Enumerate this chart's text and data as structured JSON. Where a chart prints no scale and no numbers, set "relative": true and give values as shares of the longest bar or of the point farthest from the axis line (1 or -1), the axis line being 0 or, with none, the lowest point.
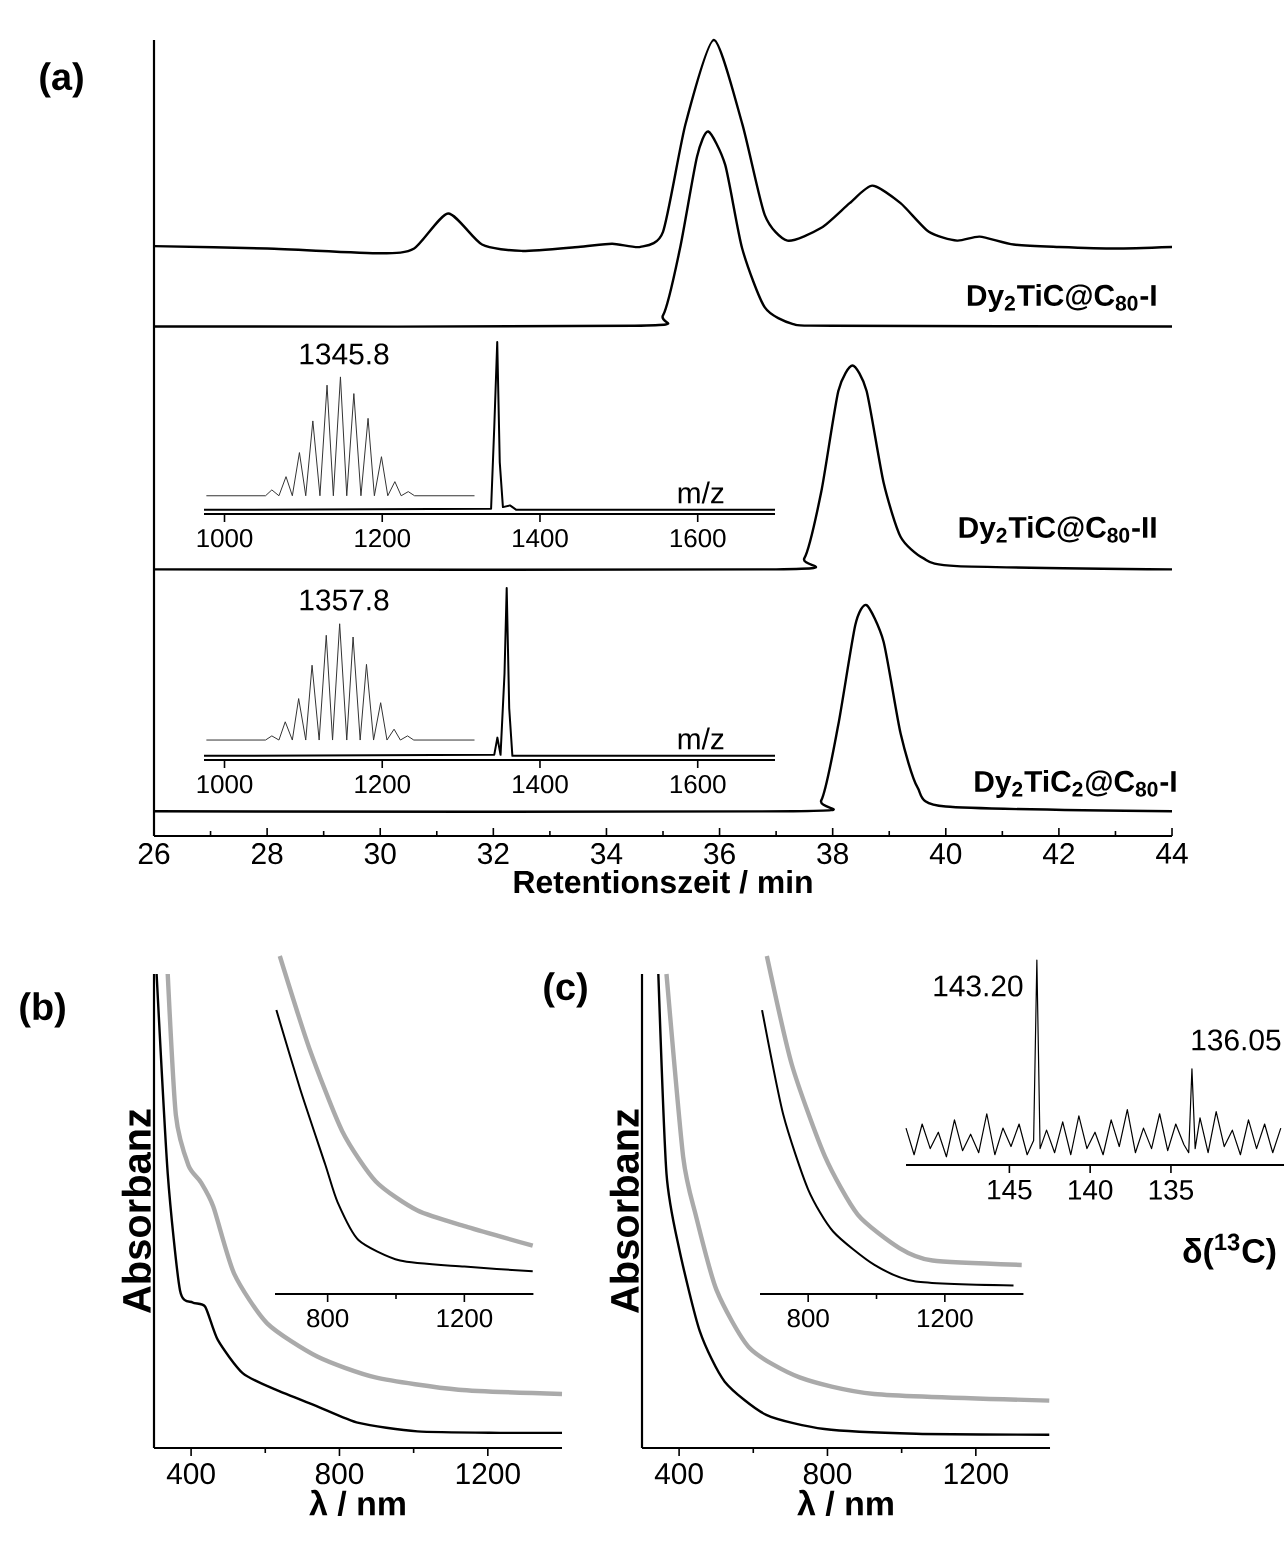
{
  "chart_data": [
    {
      "type": "line",
      "relative": true,
      "xlim": [
        26,
        44
      ],
      "xticks": [
        26,
        28,
        30,
        32,
        34,
        36,
        38,
        40,
        42,
        44
      ],
      "xlabel": "Retentionszeit / min",
      "annotations": [
        "(a)",
        "Dy$_{2}$TiC@C$_{80}$-I",
        "Dy$_{2}$TiC@C$_{80}$-II",
        "Dy$_{2}$TiC$_{2}$@C$_{80}$-I"
      ],
      "series": [
        {
          "color": "#000000",
          "x": [
            26,
            28,
            30,
            30.6,
            31.2,
            31.8,
            32.5,
            33.5,
            34.1,
            34.6,
            35.0,
            35.4,
            35.9,
            36.4,
            36.8,
            37.2,
            37.8,
            38.3,
            38.7,
            39.2,
            39.7,
            40.2,
            40.6,
            41.2,
            42,
            43,
            44
          ],
          "values": [
            0.741,
            0.738,
            0.732,
            0.738,
            0.782,
            0.743,
            0.735,
            0.74,
            0.744,
            0.74,
            0.759,
            0.895,
            1.0,
            0.895,
            0.78,
            0.748,
            0.764,
            0.795,
            0.817,
            0.795,
            0.759,
            0.748,
            0.753,
            0.743,
            0.74,
            0.738,
            0.74
          ]
        },
        {
          "color": "#000000",
          "x": [
            26,
            34.5,
            35.0,
            35.3,
            35.6,
            35.8,
            36.1,
            36.4,
            36.8,
            37.3,
            38,
            44
          ],
          "values": [
            0.64,
            0.641,
            0.654,
            0.738,
            0.853,
            0.885,
            0.843,
            0.738,
            0.664,
            0.643,
            0.641,
            0.64
          ]
        },
        {
          "color": "#000000",
          "x": [
            26,
            37.0,
            37.5,
            37.8,
            38.1,
            38.35,
            38.6,
            38.9,
            39.2,
            39.6,
            40.2,
            44
          ],
          "values": [
            0.335,
            0.335,
            0.349,
            0.433,
            0.559,
            0.591,
            0.559,
            0.444,
            0.376,
            0.349,
            0.339,
            0.335
          ]
        },
        {
          "color": "#000000",
          "x": [
            26,
            37.3,
            37.8,
            38.1,
            38.4,
            38.6,
            38.9,
            39.2,
            39.5,
            40.0,
            44
          ],
          "values": [
            0.031,
            0.031,
            0.045,
            0.14,
            0.265,
            0.29,
            0.244,
            0.129,
            0.061,
            0.037,
            0.031
          ]
        }
      ]
    },
    {
      "type": "line",
      "relative": true,
      "xlim": [
        974,
        1698
      ],
      "xticks": [
        1000,
        1200,
        1400,
        1600
      ],
      "xlabel": "m/z",
      "annotations": [
        "1345.8"
      ],
      "series": [
        {
          "color": "#000000",
          "x": [
            974,
            1338,
            1342,
            1345.8,
            1349,
            1353,
            1362,
            1370,
            1698
          ],
          "values": [
            0.024,
            0.03,
            0.5,
            1.0,
            0.3,
            0.04,
            0.05,
            0.024,
            0.024
          ]
        },
        {
          "color": "#333333",
          "x": [
            977,
            1052,
            1060,
            1069,
            1078,
            1086,
            1095,
            1103,
            1112,
            1121,
            1130,
            1138,
            1147,
            1155,
            1164,
            1173,
            1182,
            1190,
            1199,
            1207,
            1216,
            1224,
            1233,
            1241,
            1317
          ],
          "values": [
            0.106,
            0.106,
            0.14,
            0.106,
            0.217,
            0.106,
            0.357,
            0.106,
            0.541,
            0.106,
            0.749,
            0.106,
            0.797,
            0.106,
            0.7,
            0.106,
            0.556,
            0.106,
            0.333,
            0.106,
            0.188,
            0.106,
            0.13,
            0.106,
            0.106
          ]
        }
      ]
    },
    {
      "type": "line",
      "relative": true,
      "xlim": [
        974,
        1698
      ],
      "xticks": [
        1000,
        1200,
        1400,
        1600
      ],
      "xlabel": "m/z",
      "annotations": [
        "1357.8"
      ],
      "series": [
        {
          "color": "#000000",
          "x": [
            974,
            1342,
            1346,
            1350,
            1355,
            1357.8,
            1361,
            1365,
            1698
          ],
          "values": [
            0.024,
            0.03,
            0.13,
            0.03,
            0.5,
            1.0,
            0.3,
            0.024,
            0.024
          ]
        },
        {
          "color": "#333333",
          "x": [
            977,
            1052,
            1060,
            1069,
            1077,
            1086,
            1094,
            1103,
            1111,
            1120,
            1129,
            1137,
            1146,
            1155,
            1163,
            1172,
            1180,
            1189,
            1198,
            1206,
            1215,
            1223,
            1232,
            1240,
            1317
          ],
          "values": [
            0.116,
            0.116,
            0.14,
            0.116,
            0.222,
            0.116,
            0.357,
            0.116,
            0.551,
            0.116,
            0.725,
            0.116,
            0.792,
            0.116,
            0.715,
            0.116,
            0.556,
            0.116,
            0.333,
            0.116,
            0.179,
            0.116,
            0.14,
            0.116,
            0.116
          ]
        }
      ]
    },
    {
      "type": "line",
      "relative": true,
      "xlim": [
        300,
        1400
      ],
      "xticks": [
        400,
        800,
        1200
      ],
      "xlabel": "λ / nm",
      "ylabel": "Absorbanz",
      "annotations": [
        "(b)"
      ],
      "series": [
        {
          "color": "#aaaaaa",
          "x": [
            337,
            359,
            393,
            426,
            460,
            516,
            605,
            740,
            897,
            1121,
            1400
          ],
          "values": [
            1.0,
            0.702,
            0.596,
            0.561,
            0.509,
            0.368,
            0.263,
            0.193,
            0.149,
            0.123,
            0.114
          ]
        },
        {
          "color": "#000000",
          "x": [
            307,
            337,
            370,
            404,
            438,
            472,
            539,
            628,
            740,
            852,
            1010,
            1234,
            1400
          ],
          "values": [
            1.0,
            0.579,
            0.333,
            0.307,
            0.298,
            0.228,
            0.158,
            0.123,
            0.088,
            0.053,
            0.035,
            0.032,
            0.032
          ]
        }
      ]
    },
    {
      "type": "line",
      "relative": true,
      "xlim": [
        646,
        1402
      ],
      "xticks": [
        800,
        1200
      ],
      "series": [
        {
          "color": "#aaaaaa",
          "x": [
            660,
            746,
            843,
            941,
            1063,
            1210,
            1400
          ],
          "values": [
            1.0,
            0.728,
            0.481,
            0.333,
            0.247,
            0.198,
            0.143
          ]
        },
        {
          "color": "#000000",
          "x": [
            650,
            720,
            793,
            829,
            890,
            1012,
            1200,
            1400
          ],
          "values": [
            0.84,
            0.605,
            0.383,
            0.272,
            0.16,
            0.099,
            0.081,
            0.067
          ]
        }
      ]
    },
    {
      "type": "line",
      "relative": true,
      "xlim": [
        300,
        1400
      ],
      "xticks": [
        400,
        800,
        1200
      ],
      "xlabel": "λ / nm",
      "ylabel": "Absorbanz",
      "annotations": [
        "(c)"
      ],
      "series": [
        {
          "color": "#aaaaaa",
          "x": [
            366,
            411,
            445,
            501,
            590,
            725,
            926,
            1398
          ],
          "values": [
            1.0,
            0.614,
            0.491,
            0.333,
            0.211,
            0.149,
            0.114,
            0.1
          ]
        },
        {
          "color": "#000000",
          "x": [
            344,
            366,
            400,
            456,
            523,
            635,
            792,
            1039,
            1398
          ],
          "values": [
            1.0,
            0.579,
            0.421,
            0.246,
            0.14,
            0.07,
            0.04,
            0.03,
            0.028
          ]
        }
      ]
    },
    {
      "type": "line",
      "relative": true,
      "xlim": [
        659,
        1430
      ],
      "xticks": [
        800,
        1200
      ],
      "series": [
        {
          "color": "#aaaaaa",
          "x": [
            679,
            752,
            849,
            945,
            1067,
            1164,
            1425
          ],
          "values": [
            1.0,
            0.679,
            0.407,
            0.235,
            0.136,
            0.099,
            0.086
          ]
        },
        {
          "color": "#000000",
          "x": [
            665,
            727,
            800,
            873,
            994,
            1115,
            1401
          ],
          "values": [
            0.84,
            0.531,
            0.309,
            0.185,
            0.086,
            0.037,
            0.025
          ]
        }
      ]
    },
    {
      "type": "line",
      "relative": true,
      "xlim": [
        151.4,
        128
      ],
      "xticks": [
        145,
        140,
        135
      ],
      "xlabel": "δ($^{13}$C)",
      "annotations": [
        "143.20",
        "136.05"
      ],
      "series": [
        {
          "color": "#000000",
          "x": [
            151.4,
            150.9,
            150.4,
            149.9,
            149.4,
            148.9,
            148.4,
            147.9,
            147.4,
            146.9,
            146.4,
            145.9,
            145.4,
            144.9,
            144.4,
            143.9,
            143.5,
            143.3,
            143.1,
            142.7,
            142.2,
            141.7,
            141.2,
            140.7,
            140.2,
            139.7,
            139.2,
            138.7,
            138.2,
            137.7,
            137.2,
            136.7,
            136.2,
            135.7,
            135.2,
            134.7,
            134.2,
            133.9,
            133.7,
            133.5,
            133.2,
            132.7,
            132.2,
            131.7,
            131.2,
            130.7,
            130.2,
            129.7,
            129.2,
            128.7,
            128.2
          ],
          "values": [
            0.18,
            0.05,
            0.2,
            0.08,
            0.16,
            0.04,
            0.22,
            0.07,
            0.15,
            0.06,
            0.25,
            0.05,
            0.18,
            0.09,
            0.2,
            0.05,
            0.12,
            1.0,
            0.08,
            0.17,
            0.06,
            0.21,
            0.05,
            0.24,
            0.08,
            0.16,
            0.05,
            0.22,
            0.09,
            0.27,
            0.06,
            0.18,
            0.08,
            0.25,
            0.07,
            0.2,
            0.1,
            0.06,
            0.469,
            0.08,
            0.23,
            0.06,
            0.26,
            0.09,
            0.17,
            0.05,
            0.22,
            0.08,
            0.2,
            0.06,
            0.18
          ]
        }
      ]
    }
  ]
}
